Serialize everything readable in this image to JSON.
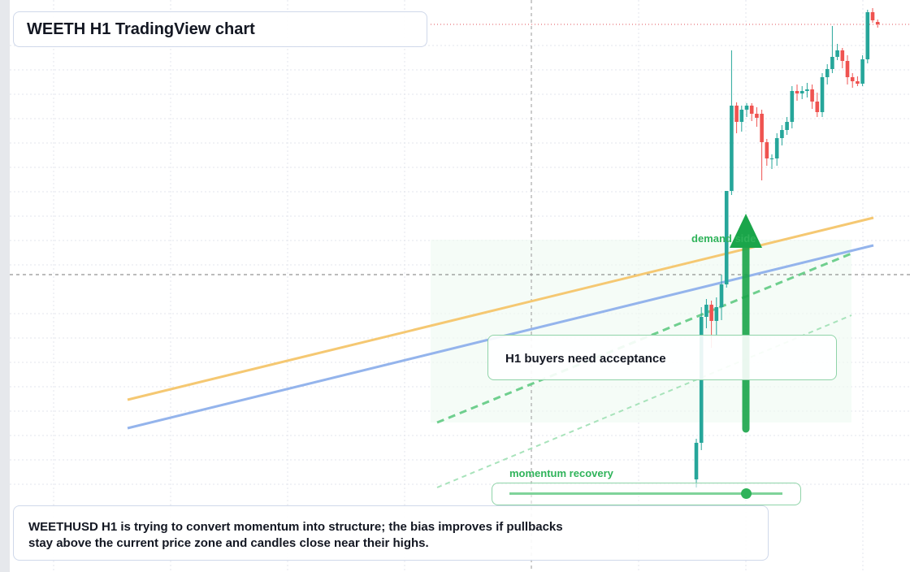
{
  "title": "WEETH H1 TradingView chart",
  "demand_label": "demand side",
  "callout": "H1 buyers need acceptance",
  "momentum_label": "momentum recovery",
  "note": "WEETHUSD H1 is trying to convert momentum into structure; the bias improves if pullbacks stay above the current price zone and candles close near their highs.",
  "candles": [
    [
      114,
      164,
      104,
      159
    ],
    [
      159,
      326,
      150,
      314
    ],
    [
      314,
      336,
      300,
      329
    ],
    [
      329,
      334,
      276,
      309
    ],
    [
      309,
      338,
      290,
      326
    ],
    [
      326,
      366,
      310,
      354
    ],
    [
      354,
      469,
      350,
      469
    ],
    [
      469,
      642,
      464,
      574
    ],
    [
      574,
      578,
      540,
      554
    ],
    [
      554,
      574,
      542,
      569
    ],
    [
      569,
      577,
      560,
      574
    ],
    [
      574,
      577,
      555,
      564
    ],
    [
      564,
      572,
      548,
      559
    ],
    [
      564,
      569,
      482,
      529
    ],
    [
      529,
      533,
      500,
      509
    ],
    [
      509,
      514,
      496,
      509
    ],
    [
      509,
      540,
      500,
      534
    ],
    [
      534,
      550,
      525,
      544
    ],
    [
      544,
      560,
      538,
      554
    ],
    [
      554,
      598,
      546,
      592
    ],
    [
      592,
      600,
      580,
      589
    ],
    [
      589,
      598,
      582,
      592
    ],
    [
      592,
      602,
      584,
      594
    ],
    [
      594,
      600,
      570,
      579
    ],
    [
      579,
      590,
      560,
      566
    ],
    [
      566,
      614,
      560,
      609
    ],
    [
      609,
      625,
      600,
      619
    ],
    [
      619,
      672,
      614,
      634
    ],
    [
      634,
      650,
      630,
      642
    ],
    [
      642,
      645,
      620,
      629
    ],
    [
      629,
      636,
      600,
      609
    ],
    [
      609,
      614,
      596,
      604
    ],
    [
      604,
      610,
      598,
      601
    ],
    [
      601,
      636,
      598,
      631
    ],
    [
      631,
      692,
      626,
      689
    ],
    [
      689,
      694,
      676,
      679
    ],
    [
      677,
      680,
      670,
      674
    ]
  ]
}
